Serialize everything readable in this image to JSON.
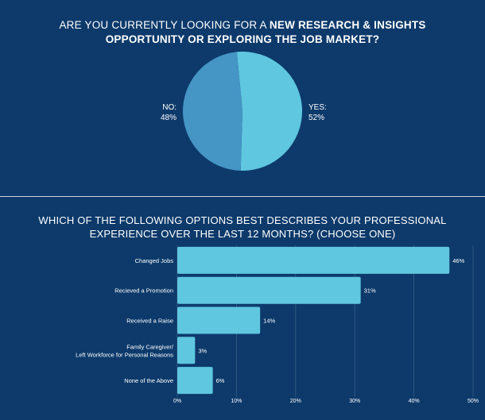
{
  "chart_data": [
    {
      "type": "pie",
      "title_prefix": "ARE YOU CURRENTLY LOOKING FOR A ",
      "title_bold": "NEW RESEARCH & INSIGHTS",
      "title_line2": "OPPORTUNITY OR EXPLORING THE JOB MARKET?",
      "slices": [
        {
          "label": "YES:",
          "value_label": "52%",
          "value": 52,
          "color": "#5fc7df"
        },
        {
          "label": "NO:",
          "value_label": "48%",
          "value": 48,
          "color": "#4595c5"
        }
      ]
    },
    {
      "type": "bar",
      "orientation": "horizontal",
      "title_line1": "WHICH OF THE FOLLOWING OPTIONS BEST DESCRIBES YOUR PROFESSIONAL",
      "title_line2": "EXPERIENCE OVER THE LAST 12 MONTHS? (CHOOSE ONE)",
      "categories": [
        [
          "Changed Jobs"
        ],
        [
          "Recieved a Promotion"
        ],
        [
          "Received a Raise"
        ],
        [
          "Family Caregiver/",
          "Left Workforce for Personal Reasons"
        ],
        [
          "None of the Above"
        ]
      ],
      "values": [
        46,
        31,
        14,
        3,
        6
      ],
      "value_labels": [
        "46%",
        "31%",
        "14%",
        "3%",
        "6%"
      ],
      "xlim": [
        0,
        50
      ],
      "xticks": [
        "0%",
        "10%",
        "20%",
        "30%",
        "40%",
        "50%"
      ],
      "bar_color": "#5fc7df",
      "grid": true
    }
  ]
}
